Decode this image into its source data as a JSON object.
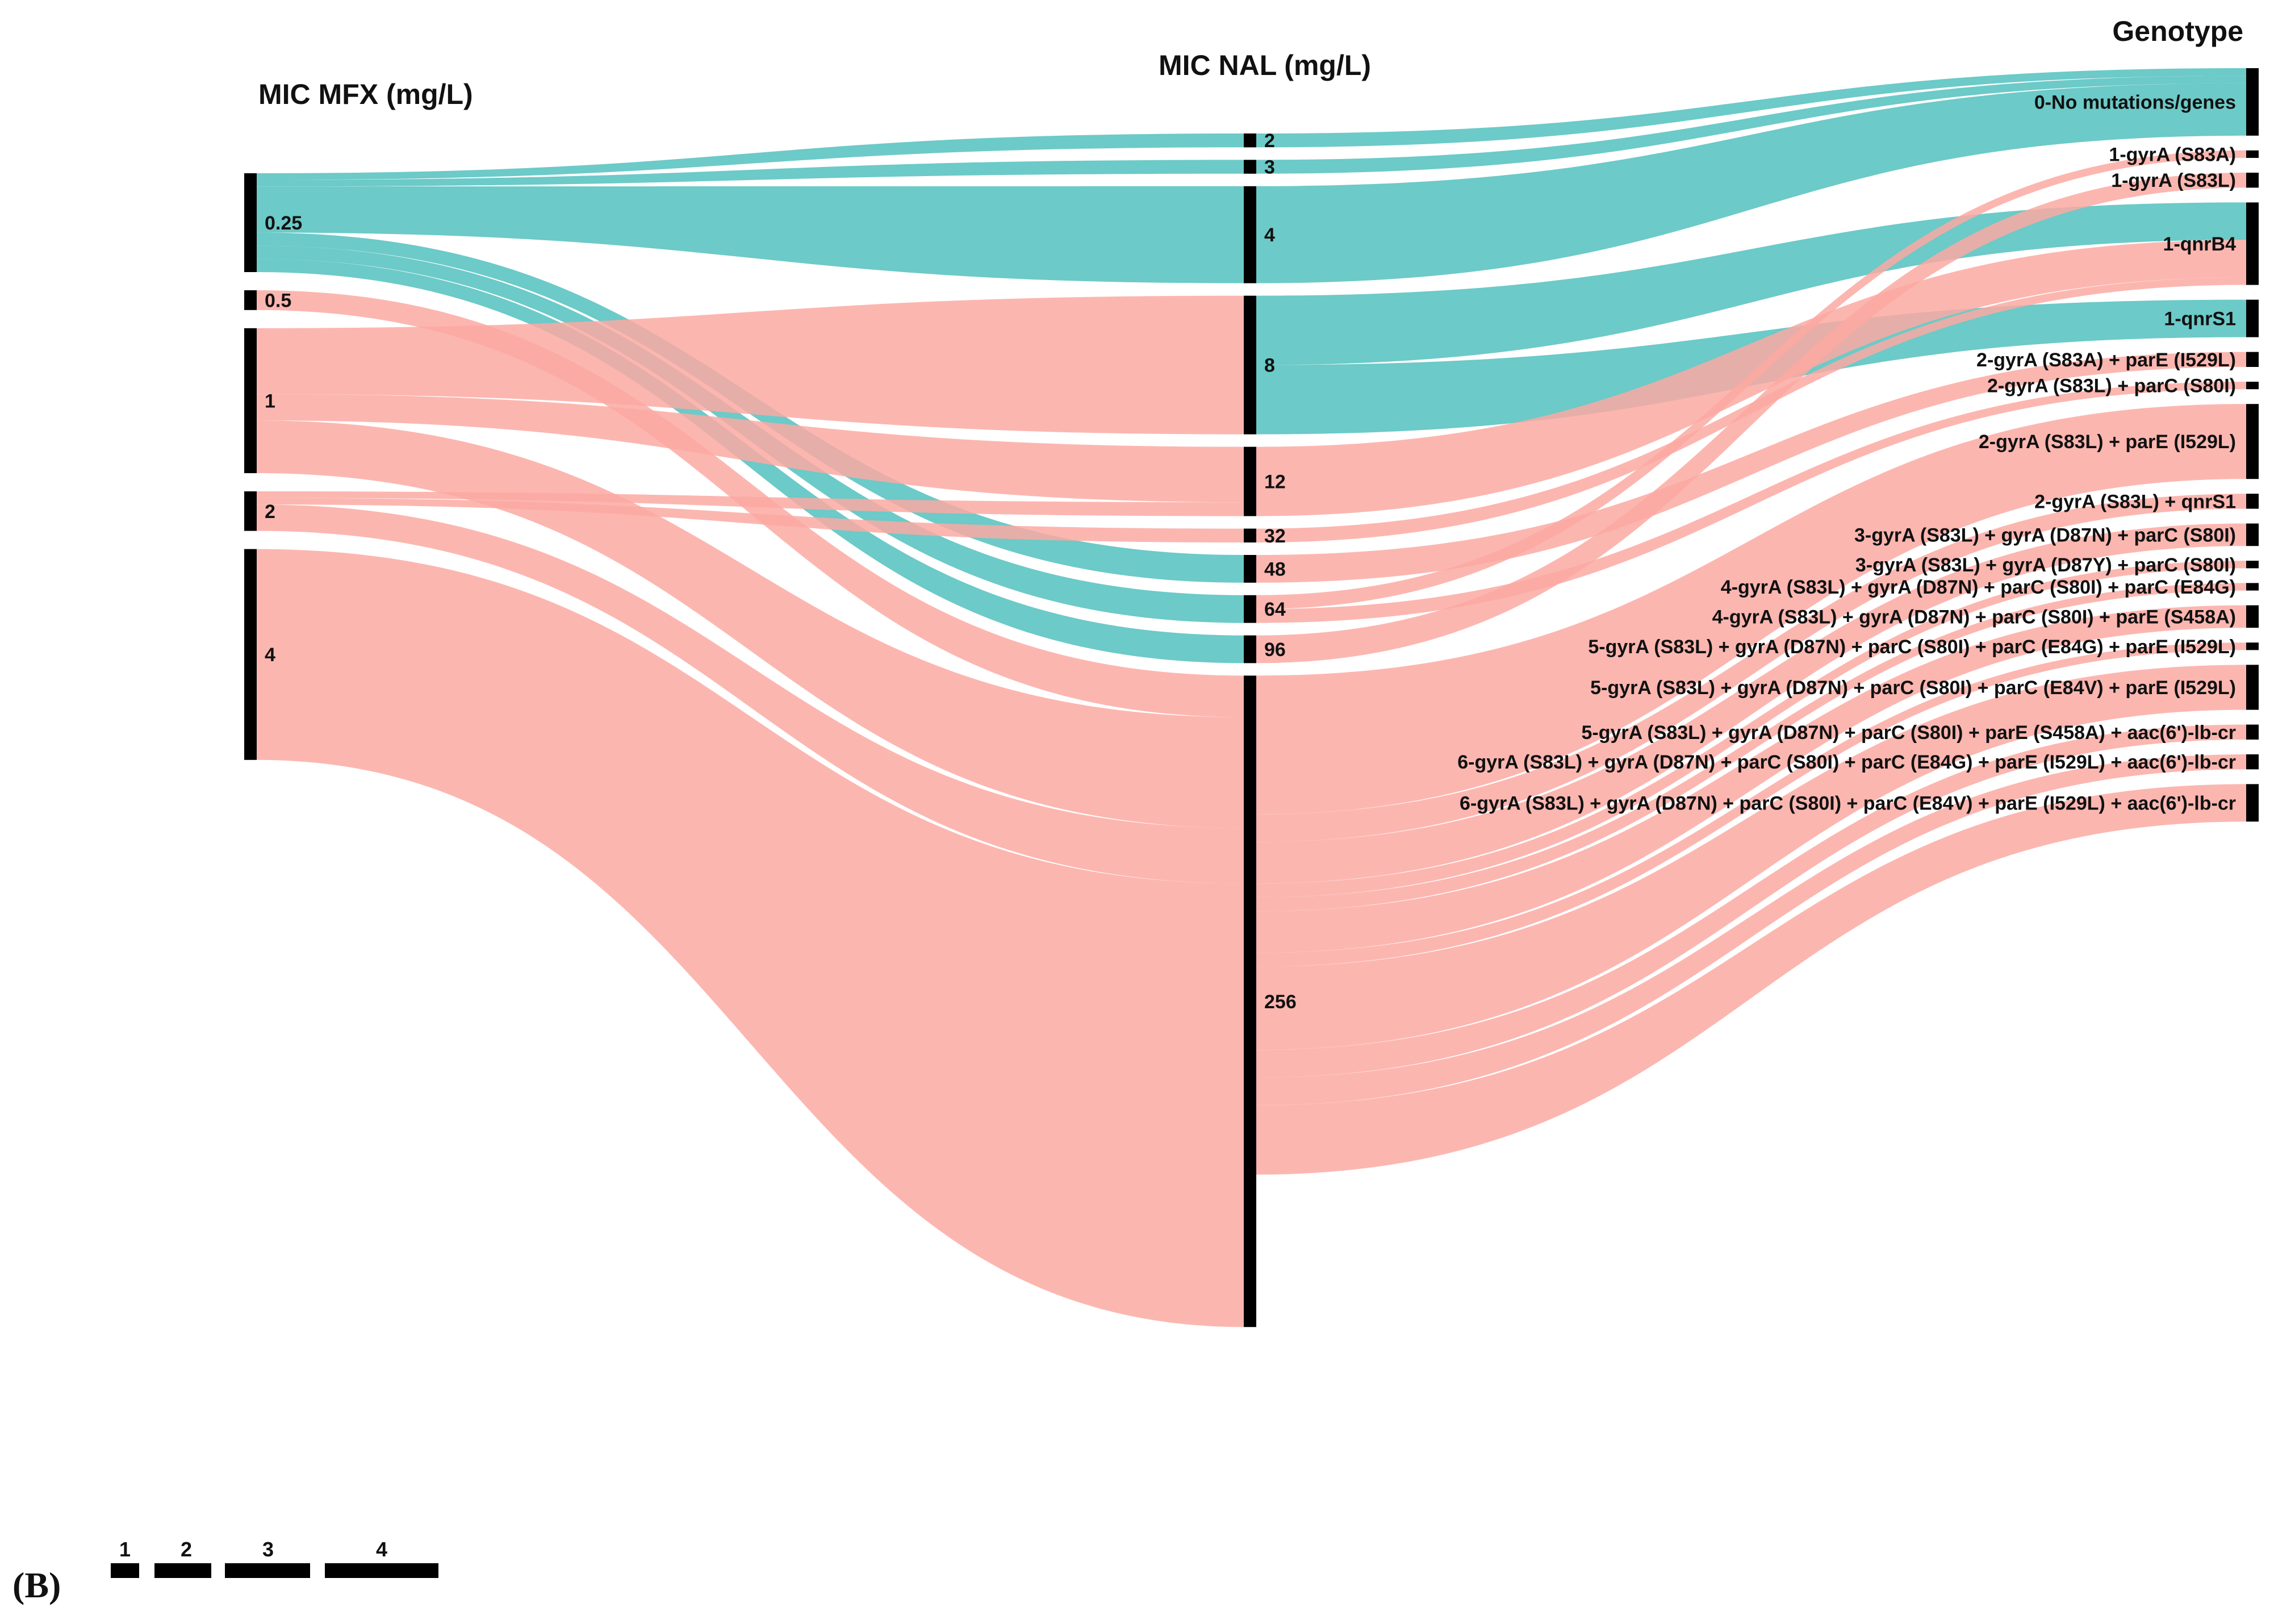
{
  "columns": {
    "mfx": {
      "title": "MIC MFX (mg/L)"
    },
    "nal": {
      "title": "MIC NAL (mg/L)"
    },
    "geno": {
      "title": "Genotype"
    }
  },
  "panel_label": "(B)",
  "colors": {
    "wildtype": "#5cc4c2",
    "mutant": "#fca9a2",
    "node": "#000000"
  },
  "scale_legend": [
    "1",
    "2",
    "3",
    "4"
  ],
  "nodes": {
    "mfx": [
      {
        "id": "m025",
        "label": "0.25",
        "count": 15
      },
      {
        "id": "m05",
        "label": "0.5",
        "count": 3
      },
      {
        "id": "m1",
        "label": "1",
        "count": 22
      },
      {
        "id": "m2",
        "label": "2",
        "count": 6
      },
      {
        "id": "m4",
        "label": "4",
        "count": 32
      }
    ],
    "nal": [
      {
        "id": "n2",
        "label": "2",
        "count": 1
      },
      {
        "id": "n3",
        "label": "3",
        "count": 1
      },
      {
        "id": "n4",
        "label": "4",
        "count": 7
      },
      {
        "id": "n8",
        "label": "8",
        "count": 10
      },
      {
        "id": "n12",
        "label": "12",
        "count": 5
      },
      {
        "id": "n32",
        "label": "32",
        "count": 1
      },
      {
        "id": "n48",
        "label": "48",
        "count": 2
      },
      {
        "id": "n64",
        "label": "64",
        "count": 2
      },
      {
        "id": "n96",
        "label": "96",
        "count": 2
      },
      {
        "id": "n256",
        "label": "256",
        "count": 47
      }
    ],
    "geno": [
      {
        "id": "g0",
        "label": "0-No mutations/genes",
        "count": 9
      },
      {
        "id": "g1",
        "label": "1-gyrA (S83A)",
        "count": 1
      },
      {
        "id": "g2",
        "label": "1-gyrA (S83L)",
        "count": 2
      },
      {
        "id": "g3",
        "label": "1-qnrB4",
        "count": 11
      },
      {
        "id": "g4",
        "label": "1-qnrS1",
        "count": 5
      },
      {
        "id": "g5",
        "label": "2-gyrA (S83A) + parE (I529L)",
        "count": 2
      },
      {
        "id": "g6",
        "label": "2-gyrA (S83L) + parC (S80I)",
        "count": 1
      },
      {
        "id": "g7",
        "label": "2-gyrA (S83L) + parE (I529L)",
        "count": 10
      },
      {
        "id": "g8",
        "label": "2-gyrA (S83L) + qnrS1",
        "count": 2
      },
      {
        "id": "g9",
        "label": "3-gyrA (S83L) + gyrA (D87N) + parC (S80I)",
        "count": 3
      },
      {
        "id": "g10",
        "label": "3-gyrA (S83L) + gyrA (D87Y) + parC (S80I)",
        "count": 1
      },
      {
        "id": "g11",
        "label": "4-gyrA (S83L) + gyrA (D87N) + parC (S80I) + parC (E84G)",
        "count": 1
      },
      {
        "id": "g12",
        "label": "4-gyrA (S83L) + gyrA (D87N) + parC (S80I) + parE (S458A)",
        "count": 3
      },
      {
        "id": "g13",
        "label": "5-gyrA (S83L) + gyrA (D87N) + parC (S80I) + parC (E84G) + parE (I529L)",
        "count": 1
      },
      {
        "id": "g14",
        "label": "5-gyrA (S83L) + gyrA (D87N) + parC (S80I) + parC (E84V) + parE (I529L)",
        "count": 6
      },
      {
        "id": "g15",
        "label": "5-gyrA (S83L) + gyrA (D87N) + parC (S80I) + parE (S458A) + aac(6')-lb-cr",
        "count": 2
      },
      {
        "id": "g16",
        "label": "6-gyrA (S83L) + gyrA (D87N) + parC (S80I) + parC (E84G) + parE (I529L) + aac(6')-lb-cr",
        "count": 2
      },
      {
        "id": "g17",
        "label": "6-gyrA (S83L) + gyrA (D87N) + parC (S80I) + parC (E84V) + parE (I529L) + aac(6')-lb-cr",
        "count": 5
      }
    ]
  },
  "links_mfx_nal": [
    {
      "source": "m025",
      "target": "n2",
      "value": 1,
      "type": "wildtype"
    },
    {
      "source": "m025",
      "target": "n3",
      "value": 1,
      "type": "wildtype"
    },
    {
      "source": "m025",
      "target": "n4",
      "value": 7,
      "type": "wildtype"
    },
    {
      "source": "m025",
      "target": "n48",
      "value": 2,
      "type": "wildtype"
    },
    {
      "source": "m025",
      "target": "n64",
      "value": 2,
      "type": "wildtype"
    },
    {
      "source": "m025",
      "target": "n96",
      "value": 2,
      "type": "wildtype"
    },
    {
      "source": "m05",
      "target": "n256",
      "value": 3,
      "type": "mutant"
    },
    {
      "source": "m1",
      "target": "n8",
      "value": 10,
      "type": "mutant"
    },
    {
      "source": "m1",
      "target": "n12",
      "value": 4,
      "type": "mutant"
    },
    {
      "source": "m1",
      "target": "n256",
      "value": 8,
      "type": "mutant"
    },
    {
      "source": "m2",
      "target": "n12",
      "value": 1,
      "type": "mutant"
    },
    {
      "source": "m2",
      "target": "n32",
      "value": 1,
      "type": "mutant"
    },
    {
      "source": "m2",
      "target": "n256",
      "value": 4,
      "type": "mutant"
    },
    {
      "source": "m4",
      "target": "n256",
      "value": 32,
      "type": "mutant"
    }
  ],
  "links_nal_geno": [
    {
      "source": "n2",
      "target": "g0",
      "value": 1,
      "type": "wildtype"
    },
    {
      "source": "n3",
      "target": "g0",
      "value": 1,
      "type": "wildtype"
    },
    {
      "source": "n4",
      "target": "g0",
      "value": 7,
      "type": "wildtype"
    },
    {
      "source": "n8",
      "target": "g3",
      "value": 5,
      "type": "wildtype"
    },
    {
      "source": "n8",
      "target": "g4",
      "value": 5,
      "type": "wildtype"
    },
    {
      "source": "n12",
      "target": "g3",
      "value": 5,
      "type": "mutant"
    },
    {
      "source": "n32",
      "target": "g3",
      "value": 1,
      "type": "mutant"
    },
    {
      "source": "n48",
      "target": "g5",
      "value": 2,
      "type": "mutant"
    },
    {
      "source": "n64",
      "target": "g1",
      "value": 1,
      "type": "mutant"
    },
    {
      "source": "n64",
      "target": "g6",
      "value": 1,
      "type": "mutant"
    },
    {
      "source": "n96",
      "target": "g2",
      "value": 2,
      "type": "mutant"
    },
    {
      "source": "n256",
      "target": "g7",
      "value": 10,
      "type": "mutant"
    },
    {
      "source": "n256",
      "target": "g8",
      "value": 2,
      "type": "mutant"
    },
    {
      "source": "n256",
      "target": "g9",
      "value": 3,
      "type": "mutant"
    },
    {
      "source": "n256",
      "target": "g10",
      "value": 1,
      "type": "mutant"
    },
    {
      "source": "n256",
      "target": "g11",
      "value": 1,
      "type": "mutant"
    },
    {
      "source": "n256",
      "target": "g12",
      "value": 3,
      "type": "mutant"
    },
    {
      "source": "n256",
      "target": "g13",
      "value": 1,
      "type": "mutant"
    },
    {
      "source": "n256",
      "target": "g14",
      "value": 6,
      "type": "mutant"
    },
    {
      "source": "n256",
      "target": "g15",
      "value": 2,
      "type": "mutant"
    },
    {
      "source": "n256",
      "target": "g16",
      "value": 2,
      "type": "mutant"
    },
    {
      "source": "n256",
      "target": "g17",
      "value": 5,
      "type": "mutant"
    }
  ]
}
